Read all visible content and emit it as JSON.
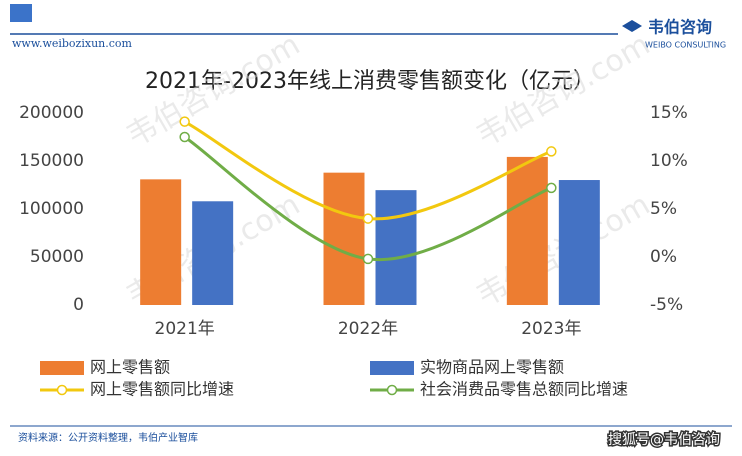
{
  "header": {
    "website": "www.weibozixun.com",
    "logo": "韦伯咨询",
    "logo_en": "WEIBO CONSULTING"
  },
  "footer": {
    "source": "资料来源：公开资料整理，韦伯产业智库",
    "credit": "搜狐号@韦伯咨询"
  },
  "watermark": "韦伯咨询.com",
  "chart_data": {
    "type": "bar-line",
    "title": "2021年-2023年线上消费零售额变化（亿元）",
    "categories": [
      "2021年",
      "2022年",
      "2023年"
    ],
    "series": [
      {
        "name": "网上零售额",
        "type": "bar",
        "color": "#ed7d31",
        "values": [
          130884,
          137853,
          154264
        ]
      },
      {
        "name": "实物商品网上零售额",
        "type": "bar",
        "color": "#4472c4",
        "values": [
          108042,
          119642,
          130174
        ]
      },
      {
        "name": "网上零售额同比增速",
        "type": "line",
        "axis": "y2",
        "color": "#f2c80f",
        "values": [
          14.1,
          4.0,
          11.0
        ]
      },
      {
        "name": "社会消费品零售总额同比增速",
        "type": "line",
        "axis": "y2",
        "color": "#70ad47",
        "values": [
          12.5,
          -0.2,
          7.2
        ]
      }
    ],
    "ylim": [
      0,
      200000
    ],
    "yticks": [
      0,
      50000,
      100000,
      150000,
      200000
    ],
    "y2lim": [
      -5,
      15
    ],
    "y2ticks": [
      {
        "value": -5,
        "label": "-5%"
      },
      {
        "value": 0,
        "label": "0%"
      },
      {
        "value": 5,
        "label": "5%"
      },
      {
        "value": 10,
        "label": "10%"
      },
      {
        "value": 15,
        "label": "15%"
      }
    ],
    "grid": false
  }
}
